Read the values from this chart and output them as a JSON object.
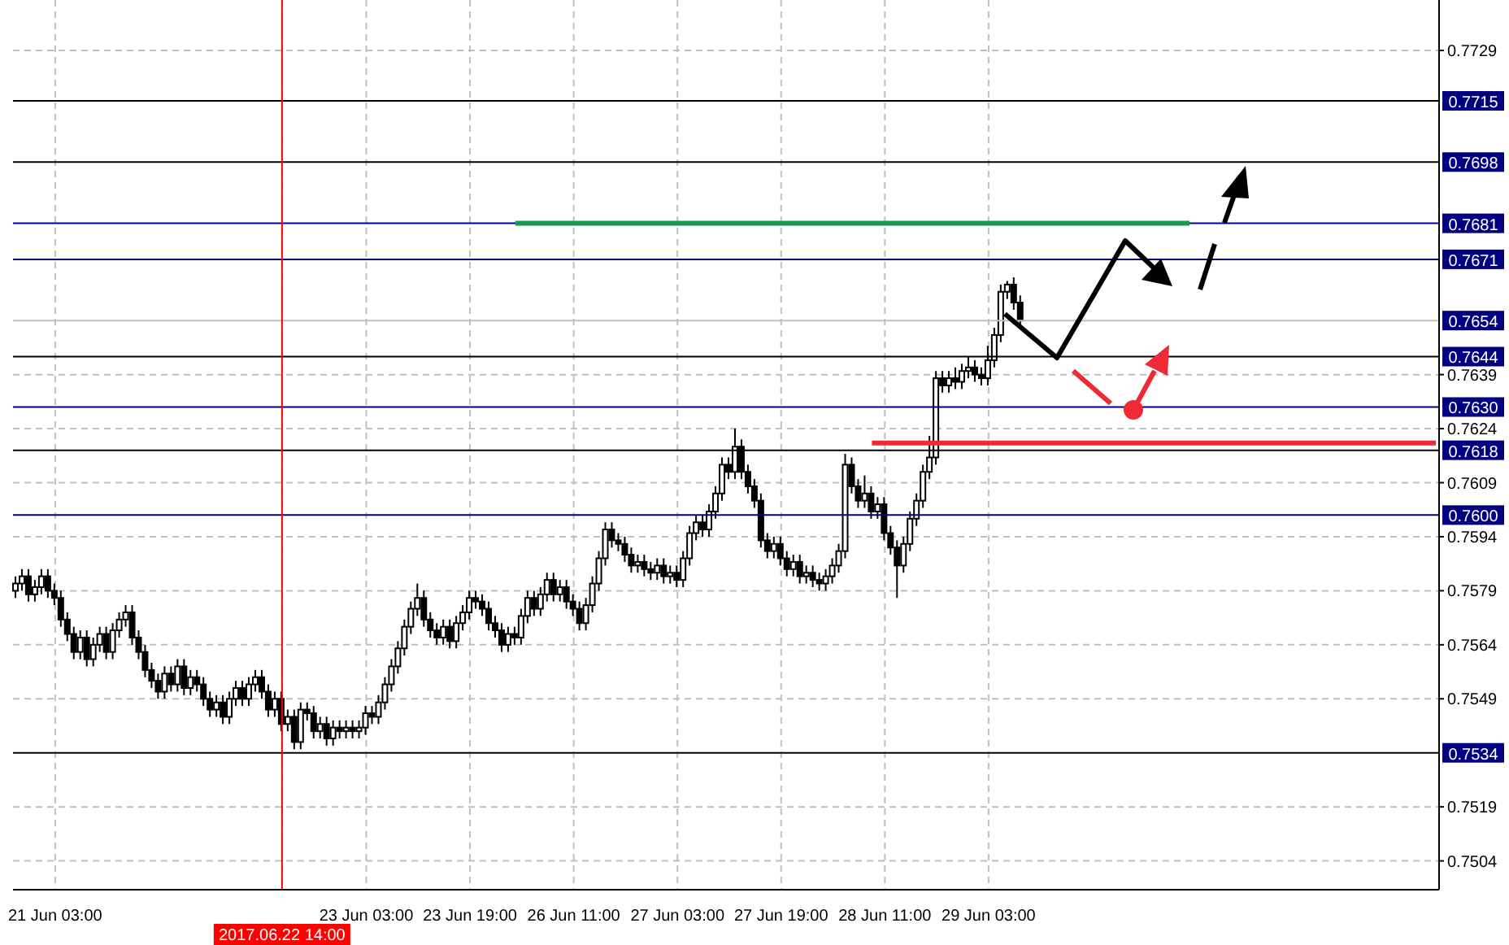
{
  "chart_data": {
    "type": "candlestick",
    "categories": [
      null,
      null,
      null,
      null,
      null,
      null,
      "21 Jun 03:00",
      null,
      null,
      null,
      null,
      null,
      null,
      null,
      null,
      null,
      null,
      null,
      null,
      null,
      null,
      null,
      null,
      null,
      null,
      null,
      null,
      null,
      null,
      null,
      null,
      null,
      null,
      null,
      null,
      null,
      null,
      null,
      null,
      null,
      null,
      "2017.06.22 14:00",
      null,
      null,
      null,
      null,
      null,
      null,
      null,
      null,
      null,
      null,
      null,
      null,
      "23 Jun 03:00",
      null,
      null,
      null,
      null,
      null,
      null,
      null,
      null,
      null,
      null,
      null,
      null,
      null,
      null,
      null,
      "23 Jun 19:00",
      null,
      null,
      null,
      null,
      null,
      null,
      null,
      null,
      null,
      null,
      null,
      null,
      null,
      null,
      null,
      "26 Jun 11:00",
      null,
      null,
      null,
      null,
      null,
      null,
      null,
      null,
      null,
      null,
      null,
      null,
      null,
      null,
      null,
      "27 Jun 03:00",
      null,
      null,
      null,
      null,
      null,
      null,
      null,
      null,
      null,
      null,
      null,
      null,
      null,
      null,
      null,
      "27 Jun 19:00",
      null,
      null,
      null,
      null,
      null,
      null,
      null,
      null,
      null,
      null,
      null,
      null,
      null,
      null,
      null,
      "28 Jun 11:00",
      null,
      null,
      null,
      null,
      null,
      null,
      null,
      null,
      null,
      null,
      null,
      null,
      null,
      null,
      null,
      "29 Jun 03:00",
      null,
      null,
      null,
      null,
      null,
      null,
      null,
      null,
      null,
      null,
      null,
      null,
      null,
      null,
      null,
      null,
      null,
      null,
      null,
      null,
      null,
      null,
      null,
      null,
      null,
      null,
      null,
      null,
      null,
      null,
      null,
      null,
      null,
      null,
      null,
      null,
      null,
      null,
      null,
      null,
      null,
      null,
      null,
      null,
      null,
      null,
      null,
      null,
      null,
      null,
      null,
      null,
      null,
      null,
      null,
      null,
      null,
      null,
      null,
      null,
      null,
      null,
      null,
      null,
      null,
      null,
      null,
      null,
      null
    ],
    "ohlc": [
      [
        0.7579,
        0.7583,
        0.7577,
        0.7581
      ],
      [
        0.7581,
        0.7585,
        0.7579,
        0.7583
      ],
      [
        0.7583,
        0.7585,
        0.7576,
        0.7578
      ],
      [
        0.7578,
        0.7582,
        0.7576,
        0.758
      ],
      [
        0.758,
        0.7585,
        0.7578,
        0.7583
      ],
      [
        0.7583,
        0.7585,
        0.7577,
        0.7579
      ],
      [
        0.7579,
        0.7581,
        0.7575,
        0.7577
      ],
      [
        0.7577,
        0.7579,
        0.7569,
        0.7571
      ],
      [
        0.7571,
        0.7573,
        0.7565,
        0.7567
      ],
      [
        0.7567,
        0.7569,
        0.756,
        0.7562
      ],
      [
        0.7562,
        0.7568,
        0.756,
        0.7566
      ],
      [
        0.7566,
        0.7568,
        0.7558,
        0.756
      ],
      [
        0.756,
        0.7566,
        0.7558,
        0.7564
      ],
      [
        0.7564,
        0.7569,
        0.7562,
        0.7567
      ],
      [
        0.7567,
        0.7569,
        0.756,
        0.7562
      ],
      [
        0.7562,
        0.757,
        0.756,
        0.7568
      ],
      [
        0.7568,
        0.7573,
        0.7566,
        0.7571
      ],
      [
        0.7571,
        0.7575,
        0.7569,
        0.7573
      ],
      [
        0.7573,
        0.7575,
        0.7564,
        0.7566
      ],
      [
        0.7566,
        0.7568,
        0.756,
        0.7562
      ],
      [
        0.7562,
        0.7564,
        0.7555,
        0.7557
      ],
      [
        0.7557,
        0.7559,
        0.7552,
        0.7554
      ],
      [
        0.7554,
        0.7556,
        0.7549,
        0.7551
      ],
      [
        0.7551,
        0.7558,
        0.7549,
        0.7556
      ],
      [
        0.7556,
        0.7558,
        0.7551,
        0.7553
      ],
      [
        0.7553,
        0.756,
        0.7551,
        0.7558
      ],
      [
        0.7558,
        0.756,
        0.755,
        0.7552
      ],
      [
        0.7552,
        0.7557,
        0.755,
        0.7555
      ],
      [
        0.7555,
        0.7557,
        0.7551,
        0.7553
      ],
      [
        0.7553,
        0.7555,
        0.7547,
        0.7549
      ],
      [
        0.7549,
        0.7551,
        0.7544,
        0.7546
      ],
      [
        0.7546,
        0.755,
        0.7544,
        0.7548
      ],
      [
        0.7548,
        0.755,
        0.7542,
        0.7544
      ],
      [
        0.7544,
        0.7551,
        0.7542,
        0.7549
      ],
      [
        0.7549,
        0.7554,
        0.7547,
        0.7552
      ],
      [
        0.7552,
        0.7554,
        0.7547,
        0.7549
      ],
      [
        0.7549,
        0.7555,
        0.7547,
        0.7553
      ],
      [
        0.7553,
        0.7557,
        0.7551,
        0.7555
      ],
      [
        0.7555,
        0.7557,
        0.7549,
        0.7551
      ],
      [
        0.7551,
        0.7553,
        0.7544,
        0.7546
      ],
      [
        0.7546,
        0.7551,
        0.7544,
        0.7549
      ],
      [
        0.7549,
        0.7551,
        0.754,
        0.7542
      ],
      [
        0.7542,
        0.7546,
        0.754,
        0.7544
      ],
      [
        0.7544,
        0.7546,
        0.7535,
        0.7537
      ],
      [
        0.7537,
        0.7548,
        0.7535,
        0.7546
      ],
      [
        0.7546,
        0.7548,
        0.7543,
        0.7545
      ],
      [
        0.7545,
        0.7547,
        0.7538,
        0.754
      ],
      [
        0.754,
        0.7544,
        0.7538,
        0.7542
      ],
      [
        0.7542,
        0.7544,
        0.7536,
        0.7538
      ],
      [
        0.7538,
        0.7543,
        0.7536,
        0.7541
      ],
      [
        0.7541,
        0.7543,
        0.7538,
        0.754
      ],
      [
        0.754,
        0.7543,
        0.7538,
        0.7541
      ],
      [
        0.7541,
        0.7543,
        0.7538,
        0.754
      ],
      [
        0.754,
        0.7543,
        0.7538,
        0.7541
      ],
      [
        0.7541,
        0.7547,
        0.7539,
        0.7545
      ],
      [
        0.7545,
        0.7547,
        0.7542,
        0.7544
      ],
      [
        0.7544,
        0.755,
        0.7542,
        0.7548
      ],
      [
        0.7548,
        0.7555,
        0.7546,
        0.7553
      ],
      [
        0.7553,
        0.756,
        0.7551,
        0.7558
      ],
      [
        0.7558,
        0.7565,
        0.7556,
        0.7563
      ],
      [
        0.7563,
        0.7571,
        0.7561,
        0.7569
      ],
      [
        0.7569,
        0.7576,
        0.7567,
        0.7574
      ],
      [
        0.7574,
        0.7581,
        0.7572,
        0.7577
      ],
      [
        0.7577,
        0.7579,
        0.7569,
        0.7571
      ],
      [
        0.7571,
        0.7573,
        0.7566,
        0.7568
      ],
      [
        0.7568,
        0.757,
        0.7564,
        0.7566
      ],
      [
        0.7566,
        0.7571,
        0.7564,
        0.7569
      ],
      [
        0.7569,
        0.7571,
        0.7563,
        0.7565
      ],
      [
        0.7565,
        0.7572,
        0.7563,
        0.757
      ],
      [
        0.757,
        0.7575,
        0.7568,
        0.7573
      ],
      [
        0.7573,
        0.7579,
        0.7571,
        0.7577
      ],
      [
        0.7577,
        0.7579,
        0.7574,
        0.7576
      ],
      [
        0.7576,
        0.7578,
        0.7572,
        0.7574
      ],
      [
        0.7574,
        0.7576,
        0.7568,
        0.757
      ],
      [
        0.757,
        0.7572,
        0.7566,
        0.7568
      ],
      [
        0.7568,
        0.757,
        0.7562,
        0.7564
      ],
      [
        0.7564,
        0.7569,
        0.7562,
        0.7567
      ],
      [
        0.7567,
        0.7569,
        0.7564,
        0.7566
      ],
      [
        0.7566,
        0.7574,
        0.7564,
        0.7572
      ],
      [
        0.7572,
        0.7579,
        0.757,
        0.7577
      ],
      [
        0.7577,
        0.7579,
        0.7572,
        0.7574
      ],
      [
        0.7574,
        0.758,
        0.7572,
        0.7578
      ],
      [
        0.7578,
        0.7584,
        0.7576,
        0.7582
      ],
      [
        0.7582,
        0.7584,
        0.7576,
        0.7578
      ],
      [
        0.7578,
        0.7582,
        0.7576,
        0.758
      ],
      [
        0.758,
        0.7582,
        0.7574,
        0.7576
      ],
      [
        0.7576,
        0.7578,
        0.7572,
        0.7574
      ],
      [
        0.7574,
        0.7576,
        0.7568,
        0.757
      ],
      [
        0.757,
        0.7577,
        0.7568,
        0.7575
      ],
      [
        0.7575,
        0.7583,
        0.7573,
        0.7581
      ],
      [
        0.7581,
        0.759,
        0.7579,
        0.7588
      ],
      [
        0.7588,
        0.7598,
        0.7586,
        0.7596
      ],
      [
        0.7596,
        0.7598,
        0.7591,
        0.7593
      ],
      [
        0.7593,
        0.7595,
        0.759,
        0.7592
      ],
      [
        0.7592,
        0.7594,
        0.7587,
        0.7589
      ],
      [
        0.7589,
        0.7591,
        0.7584,
        0.7586
      ],
      [
        0.7586,
        0.7589,
        0.7584,
        0.7587
      ],
      [
        0.7587,
        0.7589,
        0.7583,
        0.7585
      ],
      [
        0.7585,
        0.7587,
        0.7582,
        0.7584
      ],
      [
        0.7584,
        0.7588,
        0.7582,
        0.7586
      ],
      [
        0.7586,
        0.7588,
        0.7581,
        0.7583
      ],
      [
        0.7583,
        0.7586,
        0.7581,
        0.7584
      ],
      [
        0.7584,
        0.7586,
        0.758,
        0.7582
      ],
      [
        0.7582,
        0.759,
        0.758,
        0.7588
      ],
      [
        0.7588,
        0.7597,
        0.7586,
        0.7595
      ],
      [
        0.7595,
        0.76,
        0.7593,
        0.7598
      ],
      [
        0.7598,
        0.76,
        0.7594,
        0.7596
      ],
      [
        0.7596,
        0.7603,
        0.7594,
        0.7601
      ],
      [
        0.7601,
        0.7608,
        0.7599,
        0.7606
      ],
      [
        0.7606,
        0.7616,
        0.7604,
        0.7614
      ],
      [
        0.7614,
        0.7616,
        0.761,
        0.7612
      ],
      [
        0.7612,
        0.7624,
        0.761,
        0.7619
      ],
      [
        0.7619,
        0.7621,
        0.761,
        0.7612
      ],
      [
        0.7612,
        0.7614,
        0.7606,
        0.7608
      ],
      [
        0.7608,
        0.761,
        0.7602,
        0.7604
      ],
      [
        0.7604,
        0.7606,
        0.7591,
        0.7593
      ],
      [
        0.7593,
        0.7595,
        0.7588,
        0.759
      ],
      [
        0.759,
        0.7594,
        0.7588,
        0.7592
      ],
      [
        0.7592,
        0.7594,
        0.7586,
        0.7588
      ],
      [
        0.7588,
        0.759,
        0.7583,
        0.7585
      ],
      [
        0.7585,
        0.7589,
        0.7583,
        0.7587
      ],
      [
        0.7587,
        0.7589,
        0.7581,
        0.7583
      ],
      [
        0.7583,
        0.7586,
        0.7581,
        0.7584
      ],
      [
        0.7584,
        0.7586,
        0.758,
        0.7582
      ],
      [
        0.7582,
        0.7584,
        0.7579,
        0.7581
      ],
      [
        0.7581,
        0.7585,
        0.7579,
        0.7583
      ],
      [
        0.7583,
        0.7588,
        0.7581,
        0.7586
      ],
      [
        0.7586,
        0.7592,
        0.7584,
        0.759
      ],
      [
        0.759,
        0.7617,
        0.7588,
        0.7614
      ],
      [
        0.7614,
        0.7616,
        0.7606,
        0.7608
      ],
      [
        0.7608,
        0.761,
        0.7602,
        0.7604
      ],
      [
        0.7604,
        0.7611,
        0.7602,
        0.7606
      ],
      [
        0.7606,
        0.7608,
        0.7599,
        0.7601
      ],
      [
        0.7601,
        0.7605,
        0.7599,
        0.7603
      ],
      [
        0.7603,
        0.7605,
        0.7593,
        0.7595
      ],
      [
        0.7595,
        0.7597,
        0.7589,
        0.7591
      ],
      [
        0.7591,
        0.7593,
        0.7577,
        0.7586
      ],
      [
        0.7586,
        0.7594,
        0.7584,
        0.7592
      ],
      [
        0.7592,
        0.7601,
        0.759,
        0.7599
      ],
      [
        0.7599,
        0.7606,
        0.7597,
        0.7604
      ],
      [
        0.7604,
        0.7614,
        0.7602,
        0.7612
      ],
      [
        0.7612,
        0.7622,
        0.761,
        0.7616
      ],
      [
        0.7616,
        0.764,
        0.7614,
        0.7638
      ],
      [
        0.7638,
        0.764,
        0.7634,
        0.7636
      ],
      [
        0.7636,
        0.764,
        0.7634,
        0.7638
      ],
      [
        0.7638,
        0.7641,
        0.7635,
        0.7637
      ],
      [
        0.7637,
        0.7642,
        0.7635,
        0.764
      ],
      [
        0.764,
        0.7644,
        0.7638,
        0.7641
      ],
      [
        0.7641,
        0.7643,
        0.7637,
        0.7639
      ],
      [
        0.7639,
        0.7641,
        0.7636,
        0.7638
      ],
      [
        0.7638,
        0.7647,
        0.7636,
        0.7643
      ],
      [
        0.7643,
        0.7652,
        0.7641,
        0.765
      ],
      [
        0.765,
        0.7664,
        0.7648,
        0.7662
      ],
      [
        0.7662,
        0.7665,
        0.766,
        0.7664
      ],
      [
        0.7664,
        0.7666,
        0.7657,
        0.7659
      ],
      [
        0.7659,
        0.7661,
        0.7652,
        0.7654
      ],
      null,
      null,
      null,
      null,
      null,
      null,
      null,
      null,
      null,
      null,
      null,
      null,
      null,
      null,
      null,
      null,
      null,
      null,
      null,
      null,
      null,
      null,
      null,
      null,
      null,
      null,
      null,
      null,
      null,
      null,
      null,
      null,
      null,
      null,
      null,
      null,
      null,
      null,
      null,
      null,
      null,
      null,
      null,
      null,
      null,
      null,
      null,
      null,
      null,
      null,
      null,
      null,
      null,
      null,
      null,
      null,
      null,
      null,
      null,
      null,
      null,
      null,
      null,
      null
    ],
    "color": "#000000",
    "series": [
      {
        "type": "line",
        "color": "#1a9850",
        "values": [
          null,
          null,
          null,
          null,
          null,
          null,
          null,
          null,
          null,
          null,
          null,
          null,
          null,
          null,
          null,
          null,
          null,
          null,
          null,
          null,
          null,
          null,
          null,
          null,
          null,
          null,
          null,
          null,
          null,
          null,
          null,
          null,
          null,
          null,
          null,
          null,
          null,
          null,
          null,
          null,
          null,
          null,
          null,
          null,
          null,
          null,
          null,
          null,
          null,
          null,
          null,
          null,
          null,
          null,
          null,
          null,
          null,
          null,
          null,
          null,
          null,
          null,
          null,
          null,
          null,
          null,
          null,
          null,
          null,
          null,
          null,
          null,
          null,
          null,
          null,
          null,
          null,
          0.7681,
          null,
          null,
          null,
          null,
          null,
          null,
          null,
          null,
          null,
          null,
          null,
          null,
          null,
          null,
          null,
          null,
          null,
          null,
          null,
          null,
          null,
          null,
          null,
          null,
          null,
          null,
          null,
          null,
          null,
          null,
          null,
          null,
          null,
          null,
          null,
          null,
          null,
          null,
          null,
          null,
          null,
          null,
          null,
          null,
          null,
          null,
          null,
          null,
          null,
          null,
          null,
          null,
          null,
          null,
          null,
          null,
          null,
          null,
          null,
          null,
          null,
          null,
          null,
          null,
          null,
          null,
          null,
          null,
          null,
          null,
          null,
          null,
          null,
          null,
          null,
          null,
          null,
          null,
          null,
          null,
          null,
          null,
          null,
          null,
          null,
          null,
          null,
          null,
          null,
          null,
          null,
          null,
          null,
          null,
          null,
          null,
          null,
          null,
          null,
          null,
          null,
          null,
          null,
          0.7681,
          null,
          null,
          null,
          null,
          null,
          null,
          null,
          null,
          null,
          null,
          null,
          null,
          null,
          null,
          null,
          null,
          null,
          null,
          null,
          null,
          null,
          null,
          null,
          null,
          null,
          null,
          null,
          null,
          null,
          null,
          null,
          null,
          null,
          null,
          null,
          null,
          null,
          null
        ]
      },
      {
        "type": "line",
        "color": "#ee2a35",
        "values": [
          null,
          null,
          null,
          null,
          null,
          null,
          null,
          null,
          null,
          null,
          null,
          null,
          null,
          null,
          null,
          null,
          null,
          null,
          null,
          null,
          null,
          null,
          null,
          null,
          null,
          null,
          null,
          null,
          null,
          null,
          null,
          null,
          null,
          null,
          null,
          null,
          null,
          null,
          null,
          null,
          null,
          null,
          null,
          null,
          null,
          null,
          null,
          null,
          null,
          null,
          null,
          null,
          null,
          null,
          null,
          null,
          null,
          null,
          null,
          null,
          null,
          null,
          null,
          null,
          null,
          null,
          null,
          null,
          null,
          null,
          null,
          null,
          null,
          null,
          null,
          null,
          null,
          null,
          null,
          null,
          null,
          null,
          null,
          null,
          null,
          null,
          null,
          null,
          null,
          null,
          null,
          null,
          null,
          null,
          null,
          null,
          null,
          null,
          null,
          null,
          null,
          null,
          null,
          null,
          null,
          null,
          null,
          null,
          null,
          null,
          null,
          null,
          null,
          null,
          null,
          null,
          null,
          null,
          null,
          null,
          null,
          null,
          null,
          null,
          null,
          null,
          null,
          null,
          null,
          null,
          null,
          null,
          0.762,
          null,
          null,
          null,
          null,
          null,
          null,
          null,
          null,
          null,
          null,
          null,
          null,
          null,
          null,
          null,
          null,
          null,
          null,
          null,
          null,
          null,
          null,
          null,
          null,
          null,
          null,
          null,
          null,
          null,
          null,
          null,
          null,
          null,
          null,
          null,
          null,
          null,
          null,
          null,
          null,
          null,
          null,
          null,
          null,
          null,
          null,
          null,
          null,
          null,
          null,
          null,
          null,
          null,
          null,
          null,
          null,
          null,
          null,
          null,
          null,
          null,
          null,
          null,
          null,
          null,
          null,
          null,
          null,
          null,
          null,
          null,
          null,
          null,
          null,
          null,
          null,
          null,
          null,
          null,
          null,
          null,
          null,
          null,
          null,
          null,
          null,
          0.762
        ]
      }
    ],
    "ylim": [
      0.7496,
      0.7743
    ],
    "yticks": [
      0.7504,
      0.7519,
      0.7549,
      0.7564,
      0.7579,
      0.7594,
      0.7609,
      0.7624,
      0.7639,
      0.7729
    ],
    "grid": true,
    "ref_lines": [
      {
        "axis": "y",
        "value": 0.7715,
        "label": "0.7715",
        "color": "#000000"
      },
      {
        "axis": "y",
        "value": 0.7698,
        "label": "0.7698",
        "color": "#000000"
      },
      {
        "axis": "y",
        "value": 0.7681,
        "label": "0.7681",
        "color": "#0000a0"
      },
      {
        "axis": "y",
        "value": 0.7671,
        "label": "0.7671",
        "color": "#000080"
      },
      {
        "axis": "y",
        "value": 0.7654,
        "label": "0.7654",
        "color": "#c0c0c0"
      },
      {
        "axis": "y",
        "value": 0.7644,
        "label": "0.7644",
        "color": "#000000"
      },
      {
        "axis": "y",
        "value": 0.763,
        "label": "0.7630",
        "color": "#000080"
      },
      {
        "axis": "y",
        "value": 0.7618,
        "label": "0.7618",
        "color": "#000000"
      },
      {
        "axis": "y",
        "value": 0.76,
        "label": "0.7600",
        "color": "#000080"
      },
      {
        "axis": "y",
        "value": 0.7534,
        "label": "0.7534",
        "color": "#000000"
      },
      {
        "axis": "x",
        "value": "2017.06.22 14:00",
        "color": "#ff0000"
      }
    ]
  }
}
